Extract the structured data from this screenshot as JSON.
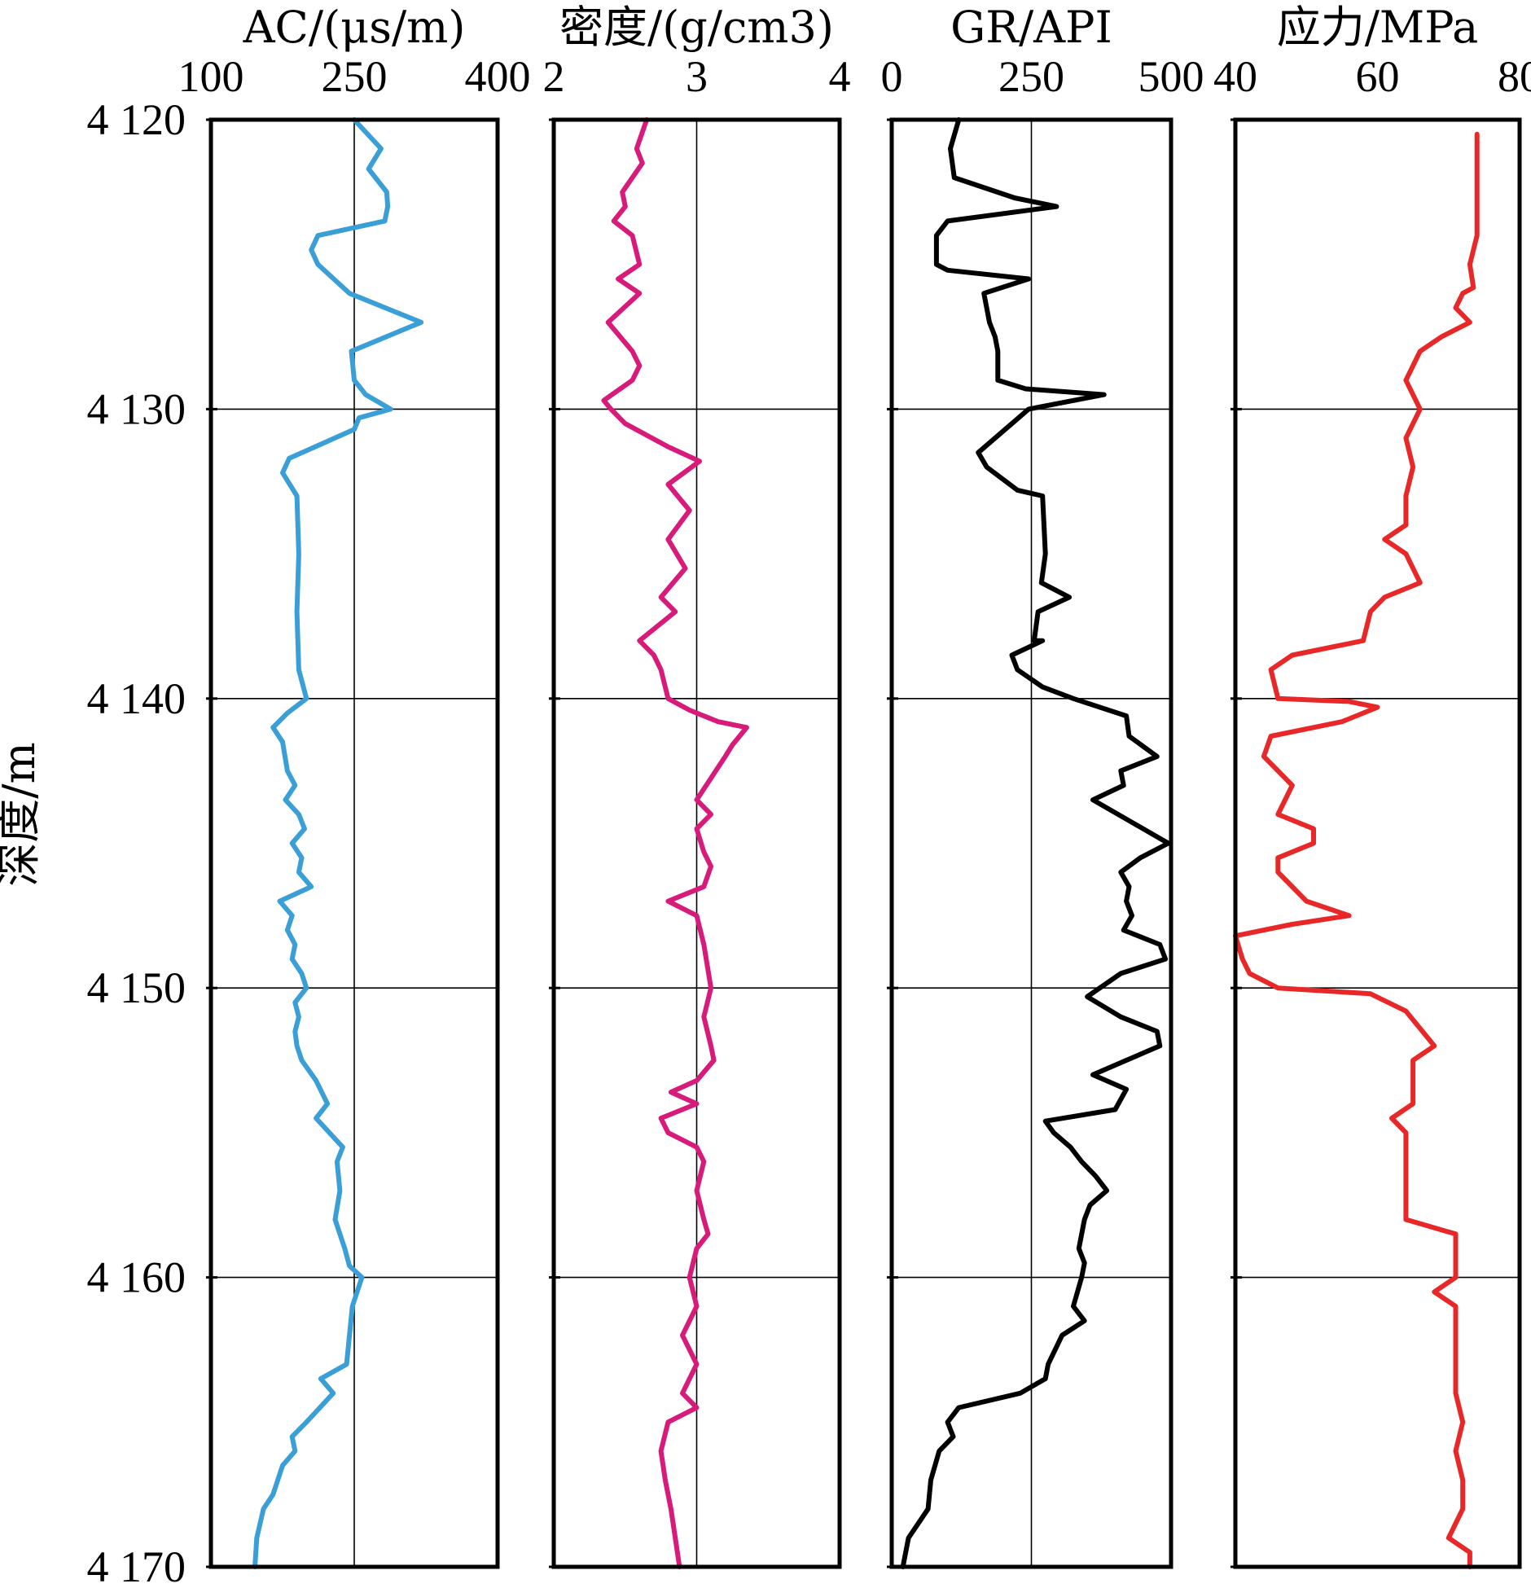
{
  "chart_data": {
    "type": "line",
    "ylabel": "深度/m",
    "y_ticks": [
      "4 120",
      "4 130",
      "4 140",
      "4 150",
      "4 160",
      "4 170"
    ],
    "y_values": [
      4120,
      4130,
      4140,
      4150,
      4160,
      4170
    ],
    "ylim": [
      4120,
      4170
    ],
    "y_inverted": true,
    "grid": true,
    "tracks": [
      {
        "title": "AC/(μs/m)",
        "xlim": [
          100,
          400
        ],
        "x_ticks": [
          "100",
          "250",
          "400"
        ],
        "x_values": [
          100,
          250,
          400
        ],
        "gridlines_x": [
          250
        ],
        "color": "#3a9fd6",
        "points": [
          [
            250,
            4120
          ],
          [
            278,
            4121
          ],
          [
            265,
            4121.7
          ],
          [
            284,
            4122.5
          ],
          [
            285,
            4123
          ],
          [
            282,
            4123.5
          ],
          [
            212,
            4124
          ],
          [
            205,
            4124.5
          ],
          [
            212,
            4125
          ],
          [
            245,
            4126
          ],
          [
            320,
            4127
          ],
          [
            247,
            4128
          ],
          [
            250,
            4129
          ],
          [
            262,
            4129.5
          ],
          [
            288,
            4130
          ],
          [
            255,
            4130.3
          ],
          [
            250,
            4130.7
          ],
          [
            182,
            4131.7
          ],
          [
            175,
            4132.2
          ],
          [
            190,
            4133
          ],
          [
            192,
            4135
          ],
          [
            190,
            4137
          ],
          [
            192,
            4139
          ],
          [
            200,
            4140
          ],
          [
            180,
            4140.5
          ],
          [
            165,
            4141
          ],
          [
            175,
            4141.5
          ],
          [
            180,
            4142.5
          ],
          [
            188,
            4143
          ],
          [
            178,
            4143.5
          ],
          [
            192,
            4144
          ],
          [
            198,
            4144.5
          ],
          [
            185,
            4145
          ],
          [
            195,
            4145.5
          ],
          [
            192,
            4146
          ],
          [
            205,
            4146.5
          ],
          [
            172,
            4147
          ],
          [
            185,
            4147.5
          ],
          [
            180,
            4148
          ],
          [
            188,
            4148.5
          ],
          [
            185,
            4149
          ],
          [
            195,
            4149.5
          ],
          [
            200,
            4150
          ],
          [
            188,
            4150.5
          ],
          [
            192,
            4151
          ],
          [
            188,
            4151.5
          ],
          [
            190,
            4152
          ],
          [
            195,
            4152.5
          ],
          [
            210,
            4153.2
          ],
          [
            222,
            4154
          ],
          [
            210,
            4154.5
          ],
          [
            238,
            4155.5
          ],
          [
            232,
            4156
          ],
          [
            235,
            4157
          ],
          [
            230,
            4158
          ],
          [
            240,
            4159
          ],
          [
            245,
            4159.6
          ],
          [
            258,
            4160
          ],
          [
            248,
            4161
          ],
          [
            242,
            4163
          ],
          [
            215,
            4163.5
          ],
          [
            228,
            4164
          ],
          [
            200,
            4165
          ],
          [
            185,
            4165.5
          ],
          [
            188,
            4166
          ],
          [
            175,
            4166.5
          ],
          [
            170,
            4167
          ],
          [
            165,
            4167.5
          ],
          [
            155,
            4168
          ],
          [
            148,
            4169
          ],
          [
            146,
            4170
          ]
        ]
      },
      {
        "title": "密度/(g/cm3)",
        "xlim": [
          2,
          4
        ],
        "x_ticks": [
          "2",
          "3",
          "4"
        ],
        "x_values": [
          2,
          3,
          4
        ],
        "gridlines_x": [
          3
        ],
        "color": "#d81b7a",
        "points": [
          [
            2.65,
            4120
          ],
          [
            2.58,
            4121
          ],
          [
            2.62,
            4121.5
          ],
          [
            2.48,
            4122.5
          ],
          [
            2.5,
            4123
          ],
          [
            2.42,
            4123.5
          ],
          [
            2.55,
            4124
          ],
          [
            2.6,
            4125
          ],
          [
            2.45,
            4125.5
          ],
          [
            2.6,
            4126
          ],
          [
            2.38,
            4127
          ],
          [
            2.55,
            4128
          ],
          [
            2.6,
            4128.5
          ],
          [
            2.55,
            4129
          ],
          [
            2.35,
            4129.7
          ],
          [
            2.4,
            4130
          ],
          [
            2.5,
            4130.5
          ],
          [
            2.8,
            4131.3
          ],
          [
            3.02,
            4131.8
          ],
          [
            2.8,
            4132.6
          ],
          [
            2.95,
            4133.5
          ],
          [
            2.8,
            4134.5
          ],
          [
            2.92,
            4135.5
          ],
          [
            2.75,
            4136.5
          ],
          [
            2.85,
            4137
          ],
          [
            2.6,
            4138
          ],
          [
            2.7,
            4138.5
          ],
          [
            2.75,
            4139
          ],
          [
            2.8,
            4140
          ],
          [
            2.95,
            4140.4
          ],
          [
            3.15,
            4140.8
          ],
          [
            3.35,
            4141
          ],
          [
            3.25,
            4141.6
          ],
          [
            3.2,
            4142
          ],
          [
            3,
            4143.5
          ],
          [
            3.1,
            4144
          ],
          [
            3,
            4144.5
          ],
          [
            3.05,
            4145.3
          ],
          [
            3.1,
            4145.8
          ],
          [
            3.05,
            4146.5
          ],
          [
            2.8,
            4147
          ],
          [
            3,
            4147.5
          ],
          [
            3.05,
            4148.5
          ],
          [
            3.1,
            4150
          ],
          [
            3.05,
            4151
          ],
          [
            3.1,
            4152
          ],
          [
            3.12,
            4152.5
          ],
          [
            3,
            4153.2
          ],
          [
            2.82,
            4153.6
          ],
          [
            3,
            4154
          ],
          [
            2.75,
            4154.5
          ],
          [
            2.8,
            4155
          ],
          [
            3,
            4155.5
          ],
          [
            3.05,
            4156
          ],
          [
            3,
            4157
          ],
          [
            3.05,
            4158
          ],
          [
            3.08,
            4158.5
          ],
          [
            3,
            4159
          ],
          [
            2.95,
            4160
          ],
          [
            3,
            4161
          ],
          [
            2.9,
            4162
          ],
          [
            3,
            4163
          ],
          [
            2.9,
            4164
          ],
          [
            3,
            4164.5
          ],
          [
            2.8,
            4165
          ],
          [
            2.75,
            4166
          ],
          [
            2.78,
            4167
          ],
          [
            2.82,
            4168
          ],
          [
            2.85,
            4169
          ],
          [
            2.88,
            4170
          ]
        ]
      },
      {
        "title": "GR/API",
        "xlim": [
          0,
          500
        ],
        "x_ticks": [
          "0",
          "250",
          "500"
        ],
        "x_values": [
          0,
          250,
          500
        ],
        "gridlines_x": [
          250
        ],
        "color": "#000000",
        "points": [
          [
            120,
            4120
          ],
          [
            105,
            4121
          ],
          [
            112,
            4122
          ],
          [
            220,
            4122.7
          ],
          [
            295,
            4123
          ],
          [
            100,
            4123.5
          ],
          [
            80,
            4124
          ],
          [
            80,
            4125
          ],
          [
            100,
            4125.2
          ],
          [
            245,
            4125.5
          ],
          [
            165,
            4126
          ],
          [
            175,
            4127
          ],
          [
            185,
            4127.5
          ],
          [
            190,
            4128
          ],
          [
            190,
            4129
          ],
          [
            240,
            4129.3
          ],
          [
            380,
            4129.5
          ],
          [
            245,
            4130
          ],
          [
            215,
            4130.5
          ],
          [
            155,
            4131.5
          ],
          [
            170,
            4132
          ],
          [
            225,
            4132.8
          ],
          [
            270,
            4133
          ],
          [
            275,
            4135
          ],
          [
            268,
            4136
          ],
          [
            318,
            4136.5
          ],
          [
            262,
            4137
          ],
          [
            255,
            4138
          ],
          [
            270,
            4138
          ],
          [
            215,
            4138.5
          ],
          [
            225,
            4139
          ],
          [
            270,
            4139.6
          ],
          [
            325,
            4140
          ],
          [
            420,
            4140.6
          ],
          [
            425,
            4141.3
          ],
          [
            475,
            4142
          ],
          [
            410,
            4142.5
          ],
          [
            415,
            4143
          ],
          [
            360,
            4143.5
          ],
          [
            450,
            4144.5
          ],
          [
            495,
            4145
          ],
          [
            445,
            4145.5
          ],
          [
            410,
            4146
          ],
          [
            425,
            4146.5
          ],
          [
            420,
            4147
          ],
          [
            430,
            4147.5
          ],
          [
            415,
            4148
          ],
          [
            480,
            4148.5
          ],
          [
            490,
            4149
          ],
          [
            410,
            4149.5
          ],
          [
            350,
            4150.3
          ],
          [
            410,
            4151
          ],
          [
            475,
            4151.5
          ],
          [
            480,
            4152
          ],
          [
            420,
            4152.5
          ],
          [
            360,
            4153
          ],
          [
            420,
            4153.5
          ],
          [
            400,
            4154.2
          ],
          [
            275,
            4154.6
          ],
          [
            290,
            4155
          ],
          [
            320,
            4155.5
          ],
          [
            340,
            4156
          ],
          [
            365,
            4156.5
          ],
          [
            385,
            4157
          ],
          [
            355,
            4157.5
          ],
          [
            345,
            4158
          ],
          [
            335,
            4159
          ],
          [
            345,
            4159.5
          ],
          [
            340,
            4160
          ],
          [
            325,
            4161
          ],
          [
            345,
            4161.5
          ],
          [
            305,
            4162
          ],
          [
            280,
            4163
          ],
          [
            275,
            4163.5
          ],
          [
            230,
            4164
          ],
          [
            120,
            4164.5
          ],
          [
            100,
            4165
          ],
          [
            110,
            4165.5
          ],
          [
            85,
            4166
          ],
          [
            70,
            4167
          ],
          [
            65,
            4168
          ],
          [
            30,
            4169
          ],
          [
            20,
            4170
          ]
        ]
      },
      {
        "title": "应力/MPa",
        "xlim": [
          40,
          80
        ],
        "x_ticks": [
          "40",
          "60",
          "80"
        ],
        "x_values": [
          40,
          60,
          80
        ],
        "gridlines_x": [],
        "color": "#e82828",
        "points": [
          [
            74,
            4120.5
          ],
          [
            74,
            4124
          ],
          [
            73,
            4125
          ],
          [
            73.5,
            4125.8
          ],
          [
            72,
            4126
          ],
          [
            71,
            4126.5
          ],
          [
            73,
            4127
          ],
          [
            69,
            4127.5
          ],
          [
            66,
            4128
          ],
          [
            64,
            4129
          ],
          [
            66,
            4130
          ],
          [
            64,
            4131
          ],
          [
            65,
            4132
          ],
          [
            64,
            4133
          ],
          [
            64,
            4134
          ],
          [
            61,
            4134.5
          ],
          [
            64,
            4135
          ],
          [
            66,
            4136
          ],
          [
            61,
            4136.5
          ],
          [
            59,
            4137
          ],
          [
            58,
            4138
          ],
          [
            48,
            4138.5
          ],
          [
            45,
            4139
          ],
          [
            46,
            4140
          ],
          [
            56,
            4140.1
          ],
          [
            60,
            4140.3
          ],
          [
            55,
            4140.8
          ],
          [
            45,
            4141.3
          ],
          [
            44,
            4142
          ],
          [
            48,
            4143
          ],
          [
            46,
            4144
          ],
          [
            51,
            4144.5
          ],
          [
            51,
            4145
          ],
          [
            46,
            4145.5
          ],
          [
            46,
            4146
          ],
          [
            50,
            4147
          ],
          [
            56,
            4147.5
          ],
          [
            48,
            4147.8
          ],
          [
            40,
            4148.2
          ],
          [
            41,
            4149
          ],
          [
            42,
            4149.5
          ],
          [
            46,
            4150
          ],
          [
            59,
            4150.2
          ],
          [
            64,
            4150.8
          ],
          [
            68,
            4152
          ],
          [
            65,
            4152.5
          ],
          [
            65,
            4154
          ],
          [
            62,
            4154.5
          ],
          [
            64,
            4155
          ],
          [
            64,
            4157
          ],
          [
            64,
            4158
          ],
          [
            71,
            4158.5
          ],
          [
            71,
            4160
          ],
          [
            68,
            4160.5
          ],
          [
            71,
            4161
          ],
          [
            71,
            4164
          ],
          [
            72,
            4165
          ],
          [
            71,
            4166
          ],
          [
            72,
            4167
          ],
          [
            72,
            4168
          ],
          [
            70,
            4169
          ],
          [
            73,
            4169.5
          ],
          [
            73,
            4170
          ]
        ]
      }
    ]
  }
}
